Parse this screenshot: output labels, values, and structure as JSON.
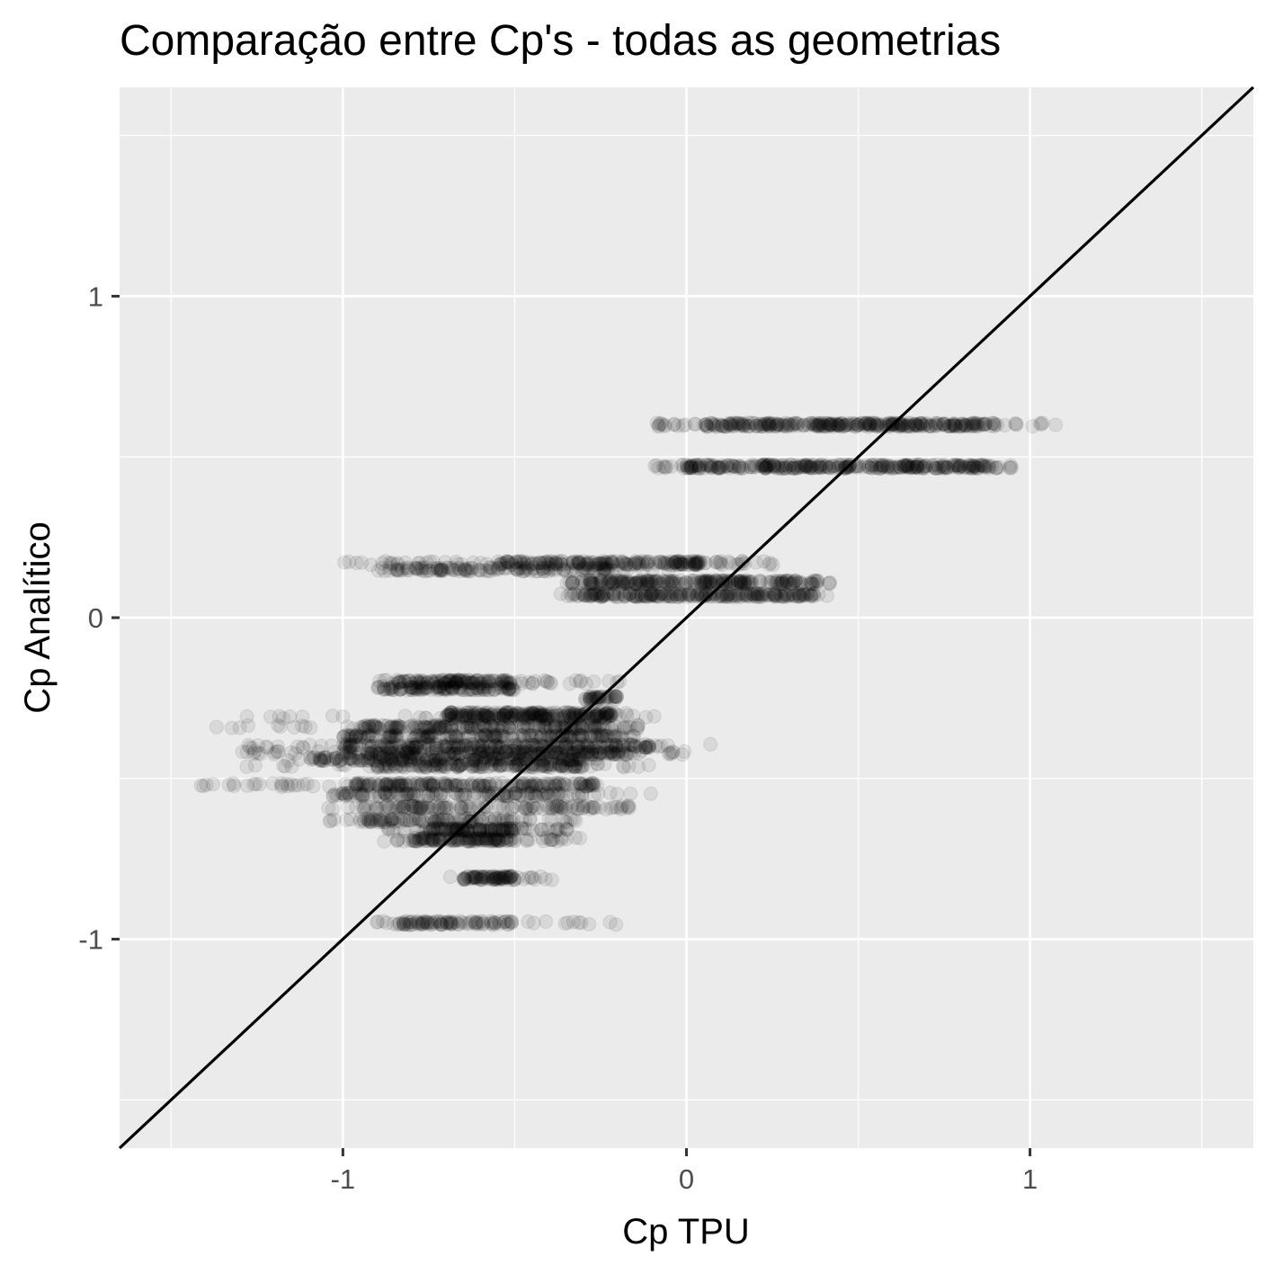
{
  "chart_data": {
    "type": "scatter",
    "title": "Comparação entre Cp's - todas as geometrias",
    "xlabel": "Cp TPU",
    "ylabel": "Cp Analítico",
    "xlim": [
      -1.65,
      1.65
    ],
    "ylim": [
      -1.65,
      1.65
    ],
    "x_ticks": [
      -1,
      0,
      1
    ],
    "y_ticks": [
      -1,
      0,
      1
    ],
    "grid": true,
    "reference_line": {
      "type": "identity",
      "slope": 1,
      "intercept": 0
    },
    "point_color": "#000000",
    "point_alpha": 0.08,
    "panel_background": "#ebebeb",
    "gridline_color": "#ffffff",
    "bands": [
      {
        "y": 0.6,
        "x_min": -0.1,
        "x_max": 1.08,
        "dense_min": 0.05,
        "dense_max": 0.9,
        "points": 360
      },
      {
        "y": 0.47,
        "x_min": -0.1,
        "x_max": 0.96,
        "dense_min": 0.0,
        "dense_max": 0.88,
        "points": 360
      },
      {
        "y": 0.17,
        "x_min": -1.0,
        "x_max": 0.28,
        "dense_min": -0.55,
        "dense_max": 0.05,
        "points": 240
      },
      {
        "y": 0.15,
        "x_min": -0.92,
        "x_max": -0.05,
        "dense_min": -0.9,
        "dense_max": -0.2,
        "points": 140
      },
      {
        "y": 0.11,
        "x_min": -0.35,
        "x_max": 0.42,
        "dense_min": -0.3,
        "dense_max": 0.38,
        "points": 260
      },
      {
        "y": 0.07,
        "x_min": -0.37,
        "x_max": 0.42,
        "dense_min": -0.3,
        "dense_max": 0.38,
        "points": 260
      },
      {
        "y": -0.2,
        "x_min": -0.9,
        "x_max": -0.15,
        "dense_min": -0.85,
        "dense_max": -0.5,
        "points": 150
      },
      {
        "y": -0.22,
        "x_min": -0.9,
        "x_max": -0.5,
        "dense_min": -0.9,
        "dense_max": -0.5,
        "points": 120
      },
      {
        "y": -0.25,
        "x_min": -0.3,
        "x_max": -0.2,
        "dense_min": -0.3,
        "dense_max": -0.2,
        "points": 40
      },
      {
        "y": -0.3,
        "x_min": -0.7,
        "x_max": -0.15,
        "dense_min": -0.7,
        "dense_max": -0.2,
        "points": 180
      },
      {
        "y": -0.31,
        "x_min": -1.3,
        "x_max": -0.08,
        "dense_min": -0.7,
        "dense_max": -0.2,
        "points": 120
      },
      {
        "y": -0.34,
        "x_min": -1.4,
        "x_max": -0.1,
        "dense_min": -0.95,
        "dense_max": -0.2,
        "points": 220
      },
      {
        "y": -0.37,
        "x_min": -1.0,
        "x_max": -0.15,
        "dense_min": -1.0,
        "dense_max": -0.2,
        "points": 200
      },
      {
        "y": -0.4,
        "x_min": -1.3,
        "x_max": -0.05,
        "dense_min": -1.0,
        "dense_max": -0.1,
        "points": 240
      },
      {
        "y": -0.39,
        "x_min": 0.07,
        "x_max": 0.07,
        "dense_min": 0.07,
        "dense_max": 0.07,
        "points": 1
      },
      {
        "y": -0.42,
        "x_min": -1.3,
        "x_max": 0.0,
        "dense_min": -1.0,
        "dense_max": -0.15,
        "points": 240
      },
      {
        "y": -0.44,
        "x_min": -1.2,
        "x_max": -0.2,
        "dense_min": -1.1,
        "dense_max": -0.3,
        "points": 200
      },
      {
        "y": -0.46,
        "x_min": -1.3,
        "x_max": -0.1,
        "dense_min": -0.9,
        "dense_max": -0.3,
        "points": 180
      },
      {
        "y": -0.52,
        "x_min": -1.42,
        "x_max": -0.25,
        "dense_min": -1.0,
        "dense_max": -0.25,
        "points": 220
      },
      {
        "y": -0.55,
        "x_min": -1.05,
        "x_max": -0.1,
        "dense_min": -1.0,
        "dense_max": -0.3,
        "points": 140
      },
      {
        "y": -0.59,
        "x_min": -1.1,
        "x_max": -0.08,
        "dense_min": -0.95,
        "dense_max": -0.15,
        "points": 140
      },
      {
        "y": -0.63,
        "x_min": -1.05,
        "x_max": -0.3,
        "dense_min": -0.95,
        "dense_max": -0.5,
        "points": 120
      },
      {
        "y": -0.66,
        "x_min": -0.9,
        "x_max": -0.3,
        "dense_min": -0.75,
        "dense_max": -0.5,
        "points": 140
      },
      {
        "y": -0.69,
        "x_min": -0.88,
        "x_max": -0.3,
        "dense_min": -0.8,
        "dense_max": -0.5,
        "points": 150
      },
      {
        "y": -0.81,
        "x_min": -0.7,
        "x_max": -0.38,
        "dense_min": -0.65,
        "dense_max": -0.5,
        "points": 90
      },
      {
        "y": -0.95,
        "x_min": -0.92,
        "x_max": -0.2,
        "dense_min": -0.85,
        "dense_max": -0.5,
        "points": 110
      }
    ]
  }
}
